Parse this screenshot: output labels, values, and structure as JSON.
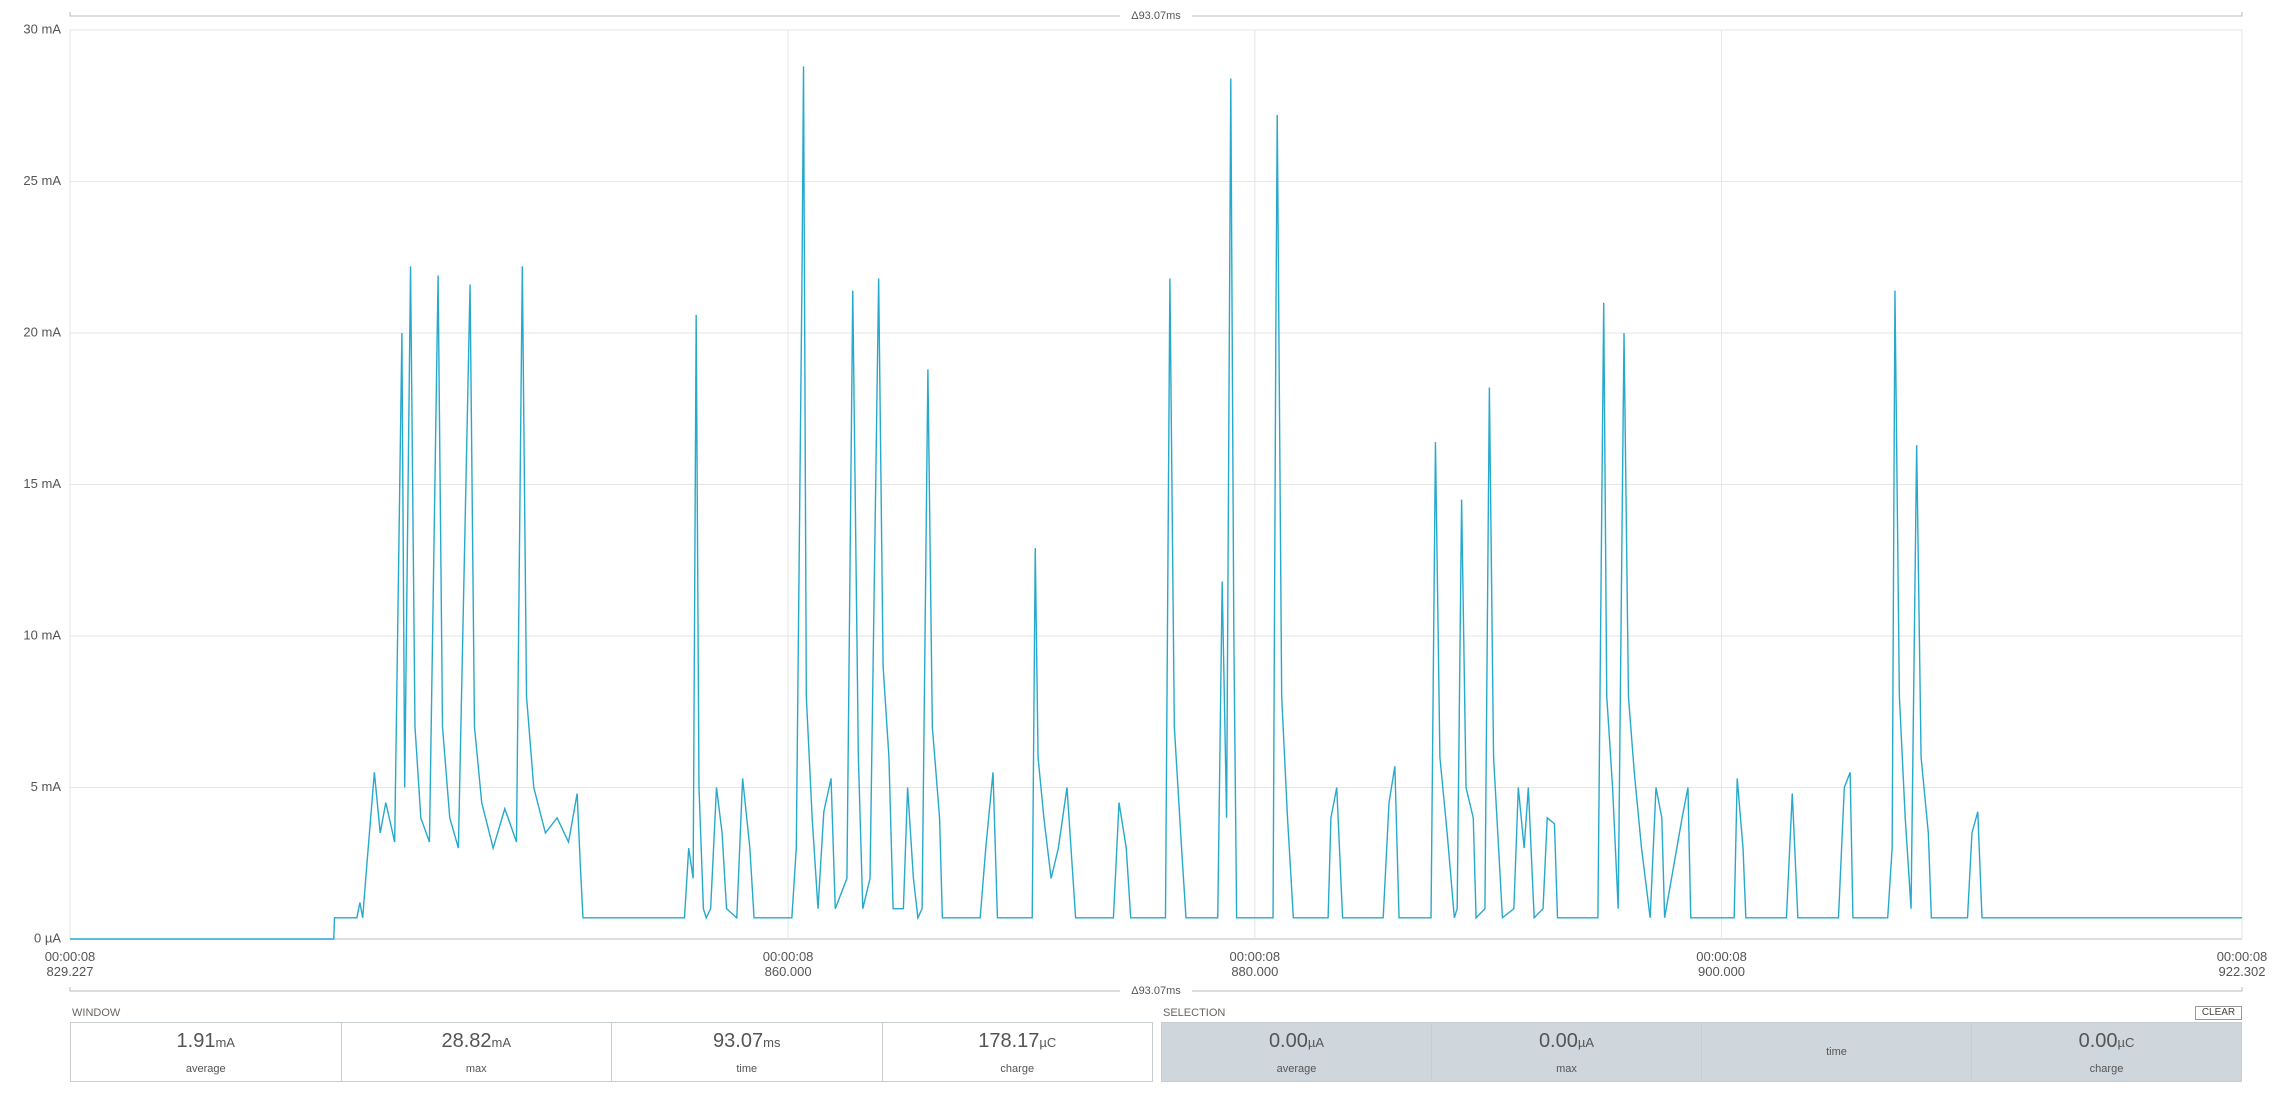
{
  "chart_data": {
    "type": "line",
    "color": "#27a9cc",
    "grid": true,
    "xlim": [
      829.227,
      922.302
    ],
    "xticks": [
      {
        "value": 829.227,
        "label": "00:00:08\n829.227"
      },
      {
        "value": 860,
        "label": "00:00:08\n860.000"
      },
      {
        "value": 880,
        "label": "00:00:08\n880.000"
      },
      {
        "value": 900,
        "label": "00:00:08\n900.000"
      },
      {
        "value": 922.302,
        "label": "00:00:08\n922.302"
      }
    ],
    "ylim": [
      0,
      30
    ],
    "yticks": [
      {
        "value": 0,
        "label": "0 µA"
      },
      {
        "value": 5,
        "label": "5 mA"
      },
      {
        "value": 10,
        "label": "10 mA"
      },
      {
        "value": 15,
        "label": "15 mA"
      },
      {
        "value": 20,
        "label": "20 mA"
      },
      {
        "value": 25,
        "label": "25 mA"
      },
      {
        "value": 30,
        "label": "30 mA"
      }
    ],
    "x": [
      829.227,
      840.53,
      840.56,
      841.52,
      841.65,
      841.77,
      841.9,
      842.27,
      842.52,
      842.76,
      843.14,
      843.45,
      843.57,
      843.82,
      844.01,
      844.26,
      844.63,
      845.0,
      845.19,
      845.5,
      845.87,
      846.37,
      846.56,
      846.87,
      847.36,
      847.86,
      848.36,
      848.61,
      848.79,
      849.1,
      849.6,
      850.1,
      850.59,
      850.96,
      851.09,
      851.21,
      855.56,
      855.74,
      855.93,
      856.06,
      856.18,
      856.37,
      856.49,
      856.68,
      856.93,
      857.17,
      857.36,
      857.8,
      858.05,
      858.36,
      858.54,
      860.16,
      860.35,
      860.6,
      860.66,
      860.78,
      861.03,
      861.28,
      861.53,
      861.84,
      862.02,
      862.52,
      862.77,
      863.01,
      863.2,
      863.51,
      863.88,
      864.07,
      864.32,
      864.5,
      864.94,
      865.12,
      865.37,
      865.56,
      865.74,
      865.99,
      866.18,
      866.49,
      866.61,
      868.23,
      868.47,
      868.78,
      868.97,
      870.46,
      870.59,
      870.71,
      870.96,
      871.27,
      871.58,
      871.95,
      872.32,
      873.94,
      874.18,
      874.49,
      874.68,
      876.17,
      876.36,
      876.55,
      876.86,
      877.05,
      878.41,
      878.6,
      878.79,
      878.97,
      879.1,
      879.22,
      880.78,
      880.9,
      880.96,
      881.15,
      881.4,
      881.65,
      883.14,
      883.26,
      883.51,
      883.76,
      885.5,
      885.75,
      886.0,
      886.18,
      887.55,
      887.74,
      887.93,
      888.24,
      888.55,
      888.67,
      888.86,
      889.05,
      889.36,
      889.48,
      889.86,
      890.05,
      890.23,
      890.61,
      891.1,
      891.29,
      891.54,
      891.72,
      891.97,
      892.35,
      892.53,
      892.84,
      892.97,
      894.7,
      894.95,
      895.08,
      895.33,
      895.57,
      895.82,
      896.01,
      896.26,
      896.57,
      896.94,
      897.19,
      897.44,
      897.56,
      898.31,
      898.56,
      898.68,
      900.54,
      900.67,
      900.92,
      901.04,
      902.78,
      903.03,
      903.27,
      905.01,
      905.26,
      905.51,
      905.63,
      907.12,
      907.31,
      907.43,
      907.62,
      907.87,
      908.12,
      908.36,
      908.55,
      908.86,
      908.99,
      910.54,
      910.73,
      910.98,
      911.16,
      922.302
    ],
    "values": [
      0,
      0,
      0.7,
      0.7,
      1.2,
      0.7,
      2.0,
      5.5,
      3.5,
      4.5,
      3.2,
      20,
      5,
      22.2,
      7,
      4,
      3.2,
      21.9,
      7,
      4,
      3,
      21.6,
      7,
      4.5,
      3,
      4.3,
      3.2,
      22.2,
      8,
      5,
      3.5,
      4,
      3.2,
      4.8,
      2.5,
      0.7,
      0.7,
      3,
      2,
      20.6,
      5,
      1,
      0.7,
      1,
      5,
      3.5,
      1,
      0.7,
      5.3,
      3,
      0.7,
      0.7,
      3,
      22.3,
      28.8,
      8,
      4,
      1,
      4.2,
      5.3,
      1,
      2,
      21.4,
      6,
      1,
      2,
      21.8,
      9,
      6,
      1,
      1,
      5,
      2,
      0.7,
      1,
      18.8,
      7,
      4,
      0.7,
      0.7,
      3,
      5.5,
      0.7,
      0.7,
      12.9,
      6,
      4,
      2,
      3,
      5,
      0.7,
      0.7,
      4.5,
      3,
      0.7,
      0.7,
      21.8,
      7,
      3,
      0.7,
      0.7,
      11.8,
      4,
      28.4,
      10,
      0.7,
      0.7,
      20,
      27.2,
      8,
      4,
      0.7,
      0.7,
      4,
      5,
      0.7,
      0.7,
      4.5,
      5.7,
      0.7,
      0.7,
      16.4,
      6,
      3.5,
      0.7,
      1,
      14.5,
      5,
      4,
      0.7,
      1,
      18.2,
      6,
      0.7,
      1,
      5,
      3,
      5,
      0.7,
      1,
      4,
      3.8,
      0.7,
      0.7,
      21,
      8,
      5,
      1,
      20,
      8,
      5.5,
      3,
      0.7,
      5,
      4,
      0.7,
      4,
      5,
      0.7,
      0.7,
      5.3,
      3,
      0.7,
      0.7,
      4.8,
      0.7,
      0.7,
      5,
      5.5,
      0.7,
      0.7,
      3,
      21.4,
      8,
      4,
      1,
      16.3,
      6,
      3.5,
      0.7,
      0.7,
      3.5,
      4.2,
      0.7,
      0.7
    ]
  },
  "range_labels": [
    "Δ93.07ms",
    "Δ93.07ms"
  ],
  "window": {
    "title": "WINDOW",
    "stats": [
      {
        "value": "1.91",
        "unit": "mA",
        "label": "average"
      },
      {
        "value": "28.82",
        "unit": "mA",
        "label": "max"
      },
      {
        "value": "93.07",
        "unit": "ms",
        "label": "time"
      },
      {
        "value": "178.17",
        "unit": "µC",
        "label": "charge"
      }
    ]
  },
  "selection": {
    "title": "SELECTION",
    "clear_button": "CLEAR",
    "stats": [
      {
        "value": "0.00",
        "unit": "µA",
        "label": "average"
      },
      {
        "value": "0.00",
        "unit": "µA",
        "label": "max"
      },
      {
        "label": "time"
      },
      {
        "value": "0.00",
        "unit": "µC",
        "label": "charge"
      }
    ]
  }
}
